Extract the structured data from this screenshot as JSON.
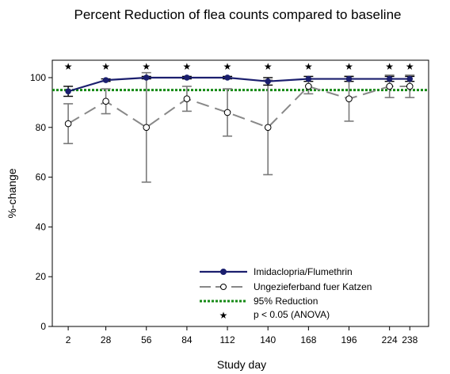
{
  "chart_data": {
    "type": "line",
    "title": "Percent Reduction of flea counts compared to baseline",
    "xlabel": "Study day",
    "ylabel": "%-change",
    "x": [
      2,
      28,
      56,
      84,
      112,
      140,
      168,
      196,
      224,
      238
    ],
    "xticks": [
      "2",
      "28",
      "56",
      "84",
      "112",
      "140",
      "168",
      "196",
      "224",
      "238"
    ],
    "yticks": [
      "0",
      "20",
      "40",
      "60",
      "80",
      "100"
    ],
    "xlim": [
      -9,
      251
    ],
    "ylim": [
      0,
      107
    ],
    "grid": false,
    "legend_position": "bottom-right",
    "series": [
      {
        "name": "Imidaclopria/Flumethrin",
        "style": "solid-line-filled-circles",
        "color": "#1b1f6e",
        "values": [
          94.5,
          99,
          100,
          100,
          100,
          98.5,
          99.5,
          99.5,
          99.5,
          99.5
        ],
        "error": [
          2,
          0.5,
          0.5,
          0.5,
          0.5,
          1.5,
          1,
          1,
          1,
          1
        ]
      },
      {
        "name": "Ungezieferband fuer Katzen",
        "style": "dashed-line-open-circles",
        "color": "#888888",
        "values": [
          81.5,
          90.5,
          80,
          91.5,
          86,
          80,
          96.5,
          91.5,
          96.5,
          96.5
        ],
        "error": [
          8,
          5,
          22,
          5,
          9.5,
          19,
          3,
          9,
          4.5,
          4.5
        ]
      }
    ],
    "reference_line": {
      "name": "95% Reduction",
      "value": 95,
      "color": "#168a16"
    },
    "significance": {
      "name": "p < 0.05 (ANOVA)",
      "marker": "★",
      "x": [
        2,
        28,
        56,
        84,
        112,
        140,
        168,
        196,
        224,
        238
      ]
    }
  }
}
